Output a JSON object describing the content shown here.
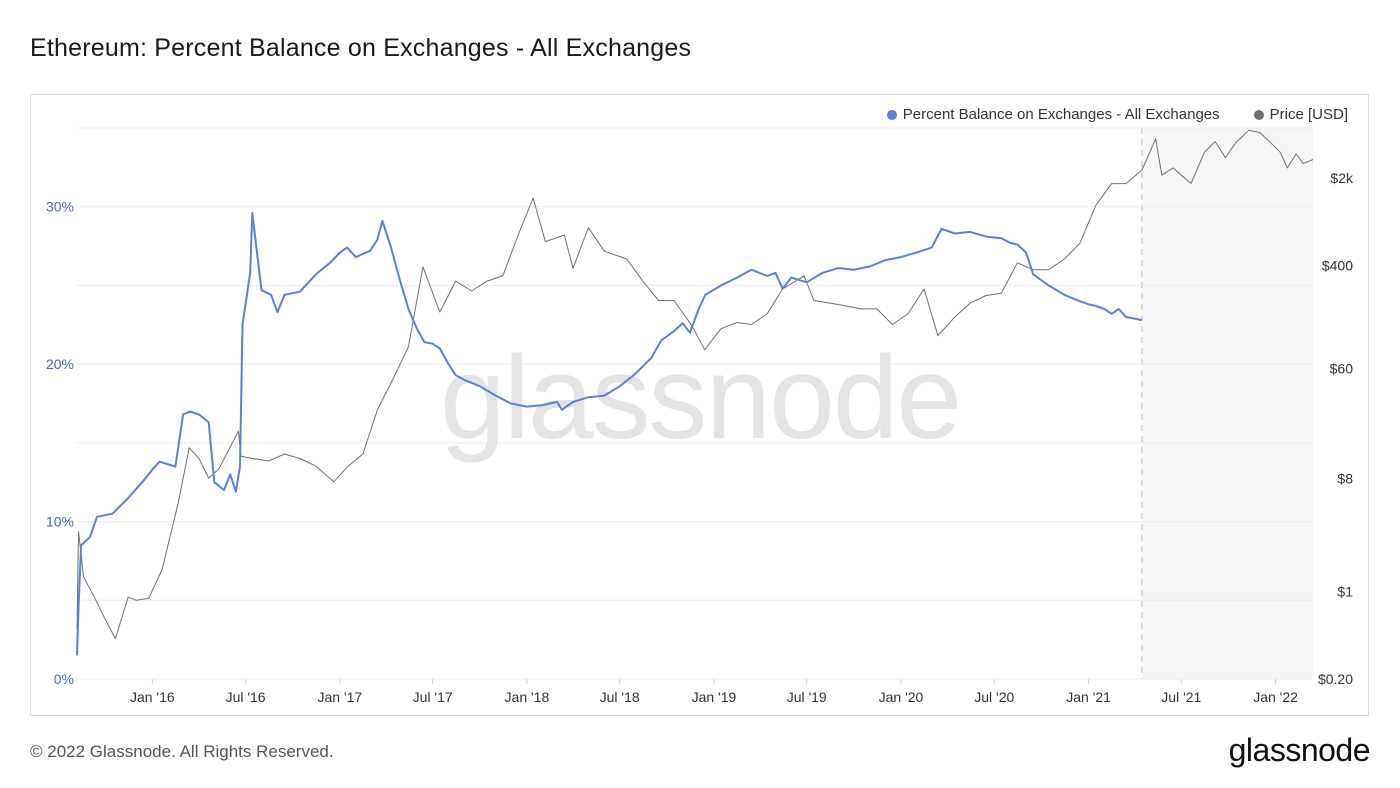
{
  "title": "Ethereum: Percent Balance on Exchanges - All Exchanges",
  "footer": "© 2022 Glassnode. All Rights Reserved.",
  "brand": "glassnode",
  "watermark": "glassnode",
  "colors": {
    "balance": "#5b7fdb",
    "price": "#707070",
    "grid": "#ececec",
    "forecast_band": "#f6f6f6"
  },
  "legend": [
    {
      "label": "Percent Balance on Exchanges - All Exchanges",
      "color": "#5b7fdb"
    },
    {
      "label": "Price [USD]",
      "color": "#707070"
    }
  ],
  "chart_data": {
    "type": "line",
    "title": "Ethereum: Percent Balance on Exchanges - All Exchanges",
    "x_range": [
      "2015-08-07",
      "2022-03-15"
    ],
    "x_ticks": [
      "Jan '16",
      "Jul '16",
      "Jan '17",
      "Jul '17",
      "Jan '18",
      "Jul '18",
      "Jan '19",
      "Jul '19",
      "Jan '20",
      "Jul '20",
      "Jan '21",
      "Jul '21",
      "Jan '22"
    ],
    "left_axis": {
      "ticks": [
        "0%",
        "10%",
        "20%",
        "30%"
      ],
      "ylim": [
        0,
        35
      ]
    },
    "right_axis": {
      "scale": "log",
      "ticks": [
        "$0.20",
        "$1",
        "$8",
        "$60",
        "$400",
        "$2k"
      ],
      "ylim": [
        0.2,
        5000
      ]
    },
    "data_end_marker": "2021-04-15",
    "series": [
      {
        "name": "Percent Balance on Exchanges - All Exchanges",
        "axis": "left",
        "points": [
          [
            "2015-08-07",
            1.5
          ],
          [
            "2015-08-10",
            4.5
          ],
          [
            "2015-08-15",
            8.5
          ],
          [
            "2015-09-01",
            9.0
          ],
          [
            "2015-09-15",
            10.3
          ],
          [
            "2015-10-15",
            10.5
          ],
          [
            "2015-11-15",
            11.5
          ],
          [
            "2015-12-15",
            12.6
          ],
          [
            "2016-01-01",
            13.3
          ],
          [
            "2016-01-15",
            13.8
          ],
          [
            "2016-02-15",
            13.5
          ],
          [
            "2016-03-01",
            16.8
          ],
          [
            "2016-03-15",
            17.0
          ],
          [
            "2016-04-01",
            16.8
          ],
          [
            "2016-04-20",
            16.3
          ],
          [
            "2016-05-01",
            12.5
          ],
          [
            "2016-05-20",
            12.0
          ],
          [
            "2016-06-01",
            13.0
          ],
          [
            "2016-06-12",
            11.9
          ],
          [
            "2016-06-20",
            13.5
          ],
          [
            "2016-06-25",
            22.5
          ],
          [
            "2016-07-10",
            25.8
          ],
          [
            "2016-07-14",
            29.6
          ],
          [
            "2016-07-20",
            28.0
          ],
          [
            "2016-08-01",
            24.7
          ],
          [
            "2016-08-20",
            24.4
          ],
          [
            "2016-09-01",
            23.3
          ],
          [
            "2016-09-15",
            24.4
          ],
          [
            "2016-10-15",
            24.6
          ],
          [
            "2016-11-15",
            25.7
          ],
          [
            "2016-12-15",
            26.5
          ],
          [
            "2017-01-01",
            27.1
          ],
          [
            "2017-01-15",
            27.4
          ],
          [
            "2017-02-01",
            26.8
          ],
          [
            "2017-02-15",
            27.0
          ],
          [
            "2017-03-01",
            27.2
          ],
          [
            "2017-03-15",
            27.9
          ],
          [
            "2017-03-25",
            29.1
          ],
          [
            "2017-04-10",
            27.5
          ],
          [
            "2017-05-01",
            25.0
          ],
          [
            "2017-05-15",
            23.5
          ],
          [
            "2017-06-01",
            22.2
          ],
          [
            "2017-06-15",
            21.4
          ],
          [
            "2017-07-01",
            21.3
          ],
          [
            "2017-07-15",
            21.0
          ],
          [
            "2017-08-01",
            20.0
          ],
          [
            "2017-08-15",
            19.3
          ],
          [
            "2017-09-01",
            19.0
          ],
          [
            "2017-10-01",
            18.6
          ],
          [
            "2017-11-01",
            18.0
          ],
          [
            "2017-12-01",
            17.5
          ],
          [
            "2018-01-01",
            17.3
          ],
          [
            "2018-02-01",
            17.4
          ],
          [
            "2018-03-01",
            17.6
          ],
          [
            "2018-03-10",
            17.1
          ],
          [
            "2018-04-01",
            17.6
          ],
          [
            "2018-05-01",
            17.9
          ],
          [
            "2018-06-01",
            18.0
          ],
          [
            "2018-07-01",
            18.6
          ],
          [
            "2018-08-01",
            19.4
          ],
          [
            "2018-09-01",
            20.4
          ],
          [
            "2018-09-20",
            21.5
          ],
          [
            "2018-10-15",
            22.1
          ],
          [
            "2018-11-01",
            22.6
          ],
          [
            "2018-11-15",
            22.0
          ],
          [
            "2018-12-01",
            23.4
          ],
          [
            "2018-12-15",
            24.4
          ],
          [
            "2019-01-15",
            25.0
          ],
          [
            "2019-02-15",
            25.5
          ],
          [
            "2019-03-15",
            26.0
          ],
          [
            "2019-04-15",
            25.6
          ],
          [
            "2019-05-01",
            25.8
          ],
          [
            "2019-05-15",
            24.8
          ],
          [
            "2019-06-01",
            25.5
          ],
          [
            "2019-07-01",
            25.2
          ],
          [
            "2019-08-01",
            25.8
          ],
          [
            "2019-09-01",
            26.1
          ],
          [
            "2019-10-01",
            26.0
          ],
          [
            "2019-11-01",
            26.2
          ],
          [
            "2019-12-01",
            26.6
          ],
          [
            "2020-01-01",
            26.8
          ],
          [
            "2020-02-01",
            27.1
          ],
          [
            "2020-03-01",
            27.4
          ],
          [
            "2020-03-20",
            28.6
          ],
          [
            "2020-04-15",
            28.3
          ],
          [
            "2020-05-15",
            28.4
          ],
          [
            "2020-06-15",
            28.1
          ],
          [
            "2020-07-15",
            28.0
          ],
          [
            "2020-08-01",
            27.7
          ],
          [
            "2020-08-15",
            27.6
          ],
          [
            "2020-09-01",
            27.1
          ],
          [
            "2020-09-15",
            25.7
          ],
          [
            "2020-10-15",
            25.0
          ],
          [
            "2020-11-15",
            24.4
          ],
          [
            "2020-12-15",
            24.0
          ],
          [
            "2021-01-01",
            23.8
          ],
          [
            "2021-01-15",
            23.7
          ],
          [
            "2021-02-01",
            23.5
          ],
          [
            "2021-02-15",
            23.2
          ],
          [
            "2021-03-01",
            23.5
          ],
          [
            "2021-03-15",
            23.0
          ],
          [
            "2021-04-15",
            22.8
          ]
        ]
      },
      {
        "name": "Price [USD]",
        "axis": "right",
        "points": [
          [
            "2015-08-07",
            0.5
          ],
          [
            "2015-08-10",
            3.0
          ],
          [
            "2015-08-20",
            1.3
          ],
          [
            "2015-09-10",
            0.9
          ],
          [
            "2015-10-01",
            0.6
          ],
          [
            "2015-10-21",
            0.42
          ],
          [
            "2015-11-15",
            0.9
          ],
          [
            "2015-12-01",
            0.85
          ],
          [
            "2015-12-25",
            0.88
          ],
          [
            "2016-01-20",
            1.5
          ],
          [
            "2016-02-20",
            5.0
          ],
          [
            "2016-03-13",
            14.0
          ],
          [
            "2016-04-01",
            11.5
          ],
          [
            "2016-04-20",
            8.0
          ],
          [
            "2016-05-10",
            9.5
          ],
          [
            "2016-06-17",
            19.0
          ],
          [
            "2016-06-22",
            12.0
          ],
          [
            "2016-07-15",
            11.5
          ],
          [
            "2016-08-15",
            11.0
          ],
          [
            "2016-09-15",
            12.5
          ],
          [
            "2016-10-15",
            11.5
          ],
          [
            "2016-11-15",
            10.0
          ],
          [
            "2016-12-20",
            7.5
          ],
          [
            "2017-01-15",
            9.8
          ],
          [
            "2017-02-15",
            12.5
          ],
          [
            "2017-03-15",
            28.0
          ],
          [
            "2017-04-15",
            50.0
          ],
          [
            "2017-05-15",
            90.0
          ],
          [
            "2017-06-12",
            390.0
          ],
          [
            "2017-07-15",
            170.0
          ],
          [
            "2017-08-15",
            300.0
          ],
          [
            "2017-09-15",
            250.0
          ],
          [
            "2017-10-15",
            300.0
          ],
          [
            "2017-11-15",
            330.0
          ],
          [
            "2017-12-15",
            700.0
          ],
          [
            "2018-01-13",
            1380.0
          ],
          [
            "2018-02-06",
            620.0
          ],
          [
            "2018-03-15",
            700.0
          ],
          [
            "2018-04-01",
            380.0
          ],
          [
            "2018-05-01",
            800.0
          ],
          [
            "2018-06-01",
            520.0
          ],
          [
            "2018-07-15",
            450.0
          ],
          [
            "2018-08-15",
            300.0
          ],
          [
            "2018-09-15",
            210.0
          ],
          [
            "2018-10-15",
            210.0
          ],
          [
            "2018-11-20",
            130.0
          ],
          [
            "2018-12-14",
            85.0
          ],
          [
            "2019-01-15",
            125.0
          ],
          [
            "2019-02-15",
            140.0
          ],
          [
            "2019-03-15",
            135.0
          ],
          [
            "2019-04-15",
            165.0
          ],
          [
            "2019-05-15",
            260.0
          ],
          [
            "2019-06-26",
            330.0
          ],
          [
            "2019-07-15",
            210.0
          ],
          [
            "2019-08-15",
            200.0
          ],
          [
            "2019-09-15",
            190.0
          ],
          [
            "2019-10-15",
            180.0
          ],
          [
            "2019-11-15",
            180.0
          ],
          [
            "2019-12-15",
            135.0
          ],
          [
            "2020-01-15",
            165.0
          ],
          [
            "2020-02-15",
            260.0
          ],
          [
            "2020-03-13",
            110.0
          ],
          [
            "2020-04-15",
            155.0
          ],
          [
            "2020-05-15",
            200.0
          ],
          [
            "2020-06-15",
            230.0
          ],
          [
            "2020-07-15",
            240.0
          ],
          [
            "2020-08-15",
            420.0
          ],
          [
            "2020-09-15",
            370.0
          ],
          [
            "2020-10-15",
            370.0
          ],
          [
            "2020-11-15",
            450.0
          ],
          [
            "2020-12-15",
            600.0
          ],
          [
            "2021-01-15",
            1200.0
          ],
          [
            "2021-02-15",
            1800.0
          ],
          [
            "2021-03-15",
            1800.0
          ],
          [
            "2021-04-15",
            2300.0
          ],
          [
            "2021-05-12",
            4100.0
          ],
          [
            "2021-05-24",
            2100.0
          ],
          [
            "2021-06-15",
            2400.0
          ],
          [
            "2021-07-20",
            1800.0
          ],
          [
            "2021-08-15",
            3200.0
          ],
          [
            "2021-09-05",
            3900.0
          ],
          [
            "2021-09-25",
            2900.0
          ],
          [
            "2021-10-15",
            3800.0
          ],
          [
            "2021-11-10",
            4800.0
          ],
          [
            "2021-12-01",
            4600.0
          ],
          [
            "2021-12-20",
            3900.0
          ],
          [
            "2022-01-10",
            3200.0
          ],
          [
            "2022-01-24",
            2400.0
          ],
          [
            "2022-02-10",
            3100.0
          ],
          [
            "2022-02-24",
            2600.0
          ],
          [
            "2022-03-15",
            2800.0
          ]
        ]
      }
    ]
  }
}
